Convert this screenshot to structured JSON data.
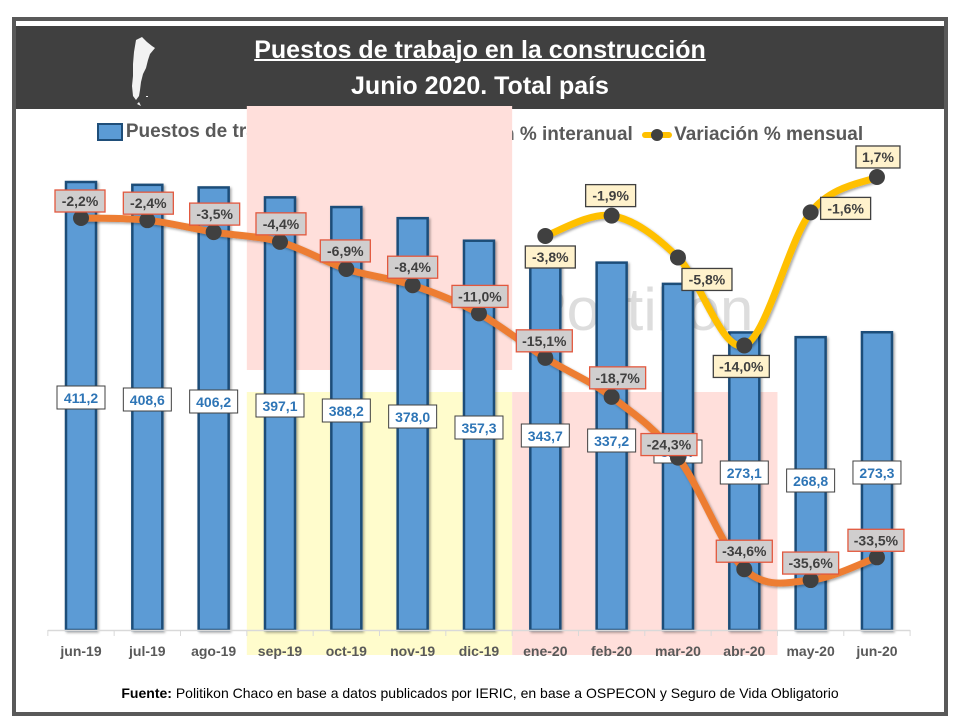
{
  "header": {
    "title_line1": "Puestos de trabajo en la construcción",
    "title_line2": "Junio 2020. Total país",
    "icon": "argentina-map-icon"
  },
  "legend": {
    "items": [
      {
        "label": "Puestos de trabajo - en miles",
        "color": "#5b9bd5"
      },
      {
        "label": "Variación % interanual",
        "color": "#ed7d31"
      },
      {
        "label": "Variación % mensual",
        "color": "#ffc000"
      }
    ]
  },
  "watermark": "Politikon",
  "source": {
    "label": "Fuente:",
    "text": " Politikon Chaco en base a datos publicados por IERIC, en base a OSPECON y Seguro de Vida Obligatorio"
  },
  "chart_data": {
    "type": "bar",
    "title": "Puestos de trabajo en la construcción - Junio 2020. Total país",
    "xlabel": "",
    "ylabel": "",
    "categories": [
      "jun-19",
      "jul-19",
      "ago-19",
      "sep-19",
      "oct-19",
      "nov-19",
      "dic-19",
      "ene-20",
      "feb-20",
      "mar-20",
      "abr-20",
      "may-20",
      "jun-20"
    ],
    "series": [
      {
        "name": "Puestos de trabajo - en miles",
        "type": "bar",
        "color": "#5b9bd5",
        "values": [
          411.2,
          408.6,
          406.2,
          397.1,
          388.2,
          378.0,
          357.3,
          343.7,
          337.2,
          317.7,
          273.1,
          268.8,
          273.3
        ],
        "labels": [
          "411,2",
          "408,6",
          "406,2",
          "397,1",
          "388,2",
          "378,0",
          "357,3",
          "343,7",
          "337,2",
          "317,7",
          "273,1",
          "268,8",
          "273,3"
        ]
      },
      {
        "name": "Variación % interanual",
        "type": "line",
        "color": "#ed7d31",
        "values": [
          -2.2,
          -2.4,
          -3.5,
          -4.4,
          -6.9,
          -8.4,
          -11.0,
          -15.1,
          -18.7,
          -24.3,
          -34.6,
          -35.6,
          -33.5
        ],
        "labels": [
          "-2,2%",
          "-2,4%",
          "-3,5%",
          "-4,4%",
          "-6,9%",
          "-8,4%",
          "-11,0%",
          "-15,1%",
          "-18,7%",
          "-24,3%",
          "-34,6%",
          "-35,6%",
          "-33,5%"
        ]
      },
      {
        "name": "Variación % mensual",
        "type": "line",
        "color": "#ffc000",
        "values": [
          null,
          null,
          null,
          null,
          null,
          null,
          null,
          -3.8,
          -1.9,
          -5.8,
          -14.0,
          -1.6,
          1.7
        ],
        "labels": [
          null,
          null,
          null,
          null,
          null,
          null,
          null,
          "-3,8%",
          "-1,9%",
          "-5,8%",
          "-14,0%",
          "-1,6%",
          "1,7%"
        ]
      }
    ],
    "highlight_bands": [
      {
        "from": "sep-19",
        "to": "dic-19",
        "color": "#ffdfdb",
        "region": "upper"
      },
      {
        "from": "sep-19",
        "to": "dic-19",
        "color": "#fffccc",
        "region": "lower"
      },
      {
        "from": "ene-20",
        "to": "abr-20",
        "color": "#ffdfdb",
        "region": "lower"
      }
    ],
    "grid": false,
    "legend_position": "top"
  }
}
